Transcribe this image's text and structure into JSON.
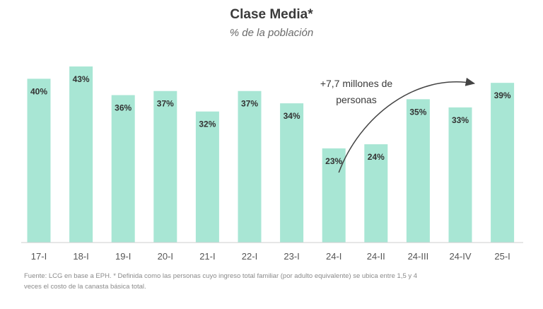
{
  "colors": {
    "bar": "#a8e6d4",
    "axis": "#cfcfcf",
    "arrow": "#444444"
  },
  "chart_data": {
    "type": "bar",
    "title": "Clase Media*",
    "subtitle": "% de la población",
    "categories": [
      "17-I",
      "18-I",
      "19-I",
      "20-I",
      "21-I",
      "22-I",
      "23-I",
      "24-I",
      "24-II",
      "24-III",
      "24-IV",
      "25-I"
    ],
    "values": [
      40,
      43,
      36,
      37,
      32,
      37,
      34,
      23,
      24,
      35,
      33,
      39
    ],
    "value_labels": [
      "40%",
      "43%",
      "36%",
      "37%",
      "32%",
      "37%",
      "34%",
      "23%",
      "24%",
      "35%",
      "33%",
      "39%"
    ],
    "ylim": [
      0,
      43
    ],
    "xlabel": "",
    "ylabel": "",
    "annotation": {
      "lines": [
        "+7,7 millones de",
        "personas"
      ],
      "from_category": "24-I",
      "to_category": "25-I"
    }
  },
  "footnote": {
    "line1": "Fuente: LCG en base a EPH. * Definida como las personas cuyo ingreso total familiar (por adulto equivalente) se ubica entre 1,5 y 4",
    "line2": "veces el costo de la canasta básica total."
  }
}
